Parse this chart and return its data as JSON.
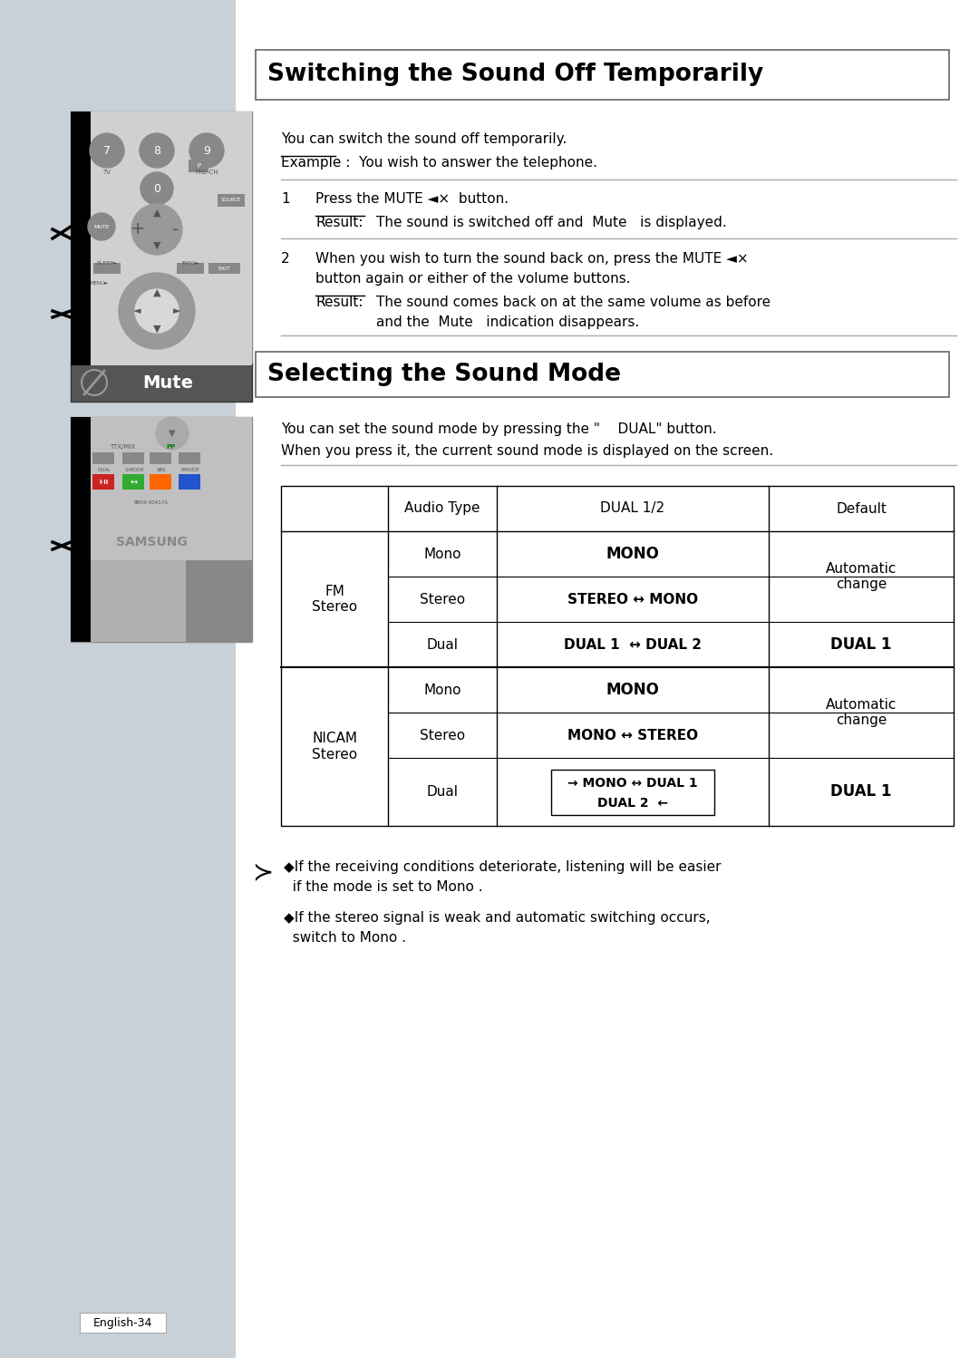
{
  "bg_color": "#c8d0d8",
  "title1": "Switching the Sound Off Temporarily",
  "title2": "Selecting the Sound Mode",
  "section1_text1": "You can switch the sound off temporarily.",
  "section1_text2": "Example :  You wish to answer the telephone.",
  "step1_text": "Press the MUTE ◄×  button.",
  "step1_result_text": "The sound is switched off and  Mute   is displayed.",
  "step2_text": "When you wish to turn the sound back on, press the MUTE ◄×",
  "step2_text2": "button again or either of the volume buttons.",
  "step2_result_text1": "The sound comes back on at the same volume as before",
  "step2_result_text2": "and the  Mute   indication disappears.",
  "mute_label": "Mute",
  "section2_text1": "You can set the sound mode by pressing the \"    DUAL\" button.",
  "section2_text2": "When you press it, the current sound mode is displayed on the screen.",
  "note1a": "◆If the receiving conditions deteriorate, listening will be easier",
  "note1b": "  if the mode is set to Mono .",
  "note2a": "◆If the stereo signal is weak and automatic switching occurs,",
  "note2b": "  switch to Mono .",
  "footer": "English-34"
}
